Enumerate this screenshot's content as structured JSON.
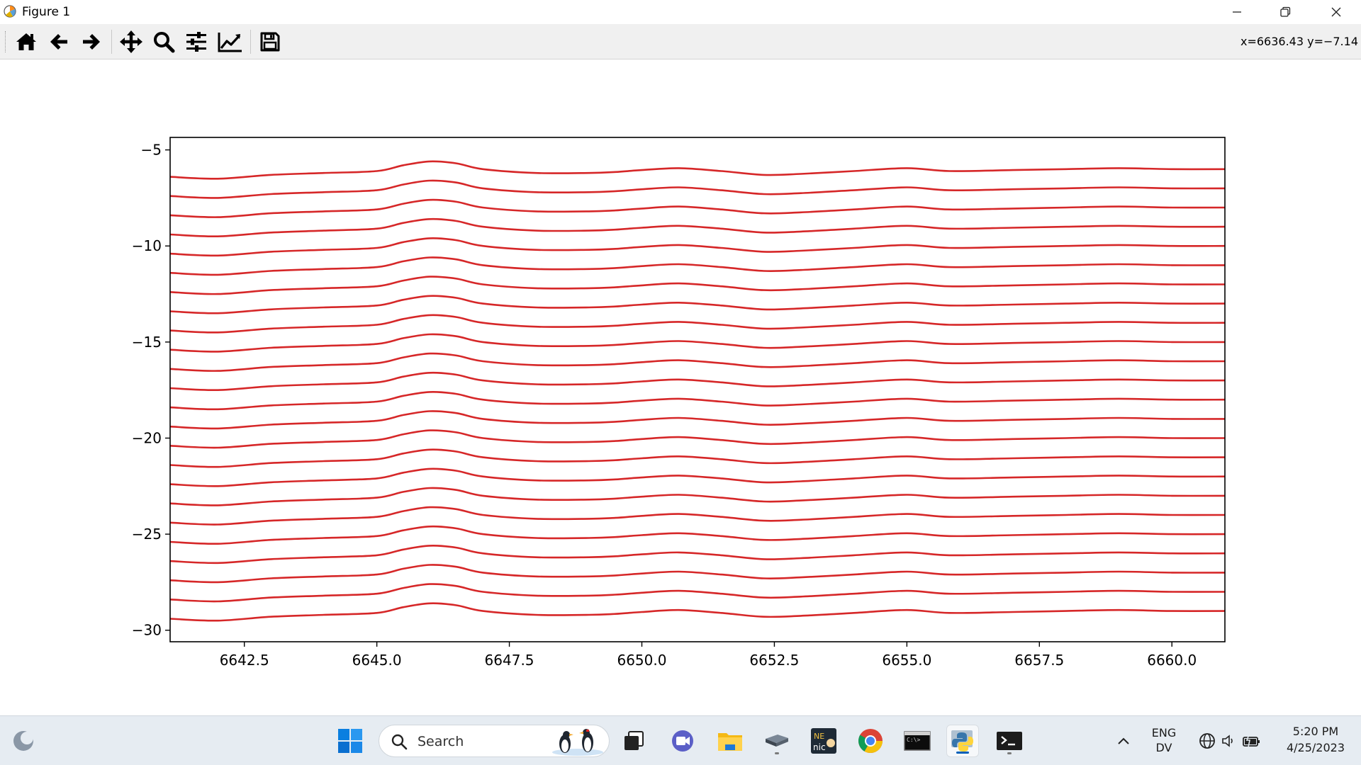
{
  "window": {
    "title": "Figure 1",
    "buttons": [
      "minimize",
      "restore",
      "close"
    ]
  },
  "toolbar": {
    "buttons": [
      {
        "name": "home-button",
        "icon": "home-icon"
      },
      {
        "name": "back-button",
        "icon": "arrow-left-icon"
      },
      {
        "name": "forward-button",
        "icon": "arrow-right-icon"
      },
      {
        "name": "pan-button",
        "icon": "move-icon"
      },
      {
        "name": "zoom-button",
        "icon": "magnifier-icon"
      },
      {
        "name": "subplots-button",
        "icon": "sliders-icon"
      },
      {
        "name": "edit-axis-button",
        "icon": "line-chart-icon"
      },
      {
        "name": "save-button",
        "icon": "floppy-disk-icon"
      }
    ],
    "coords_readout": "x=6636.43 y=−7.14"
  },
  "chart_data": {
    "type": "line",
    "title": "",
    "xlabel": "",
    "ylabel": "",
    "xlim": [
      6641.1,
      6661.0
    ],
    "ylim": [
      -30.6,
      -4.35
    ],
    "xticks": [
      6642.5,
      6645.0,
      6647.5,
      6650.0,
      6652.5,
      6655.0,
      6657.5,
      6660.0
    ],
    "xtick_labels": [
      "6642.5",
      "6645.0",
      "6647.5",
      "6650.0",
      "6652.5",
      "6655.0",
      "6657.5",
      "6660.0"
    ],
    "yticks": [
      -5,
      -10,
      -15,
      -20,
      -25,
      -30
    ],
    "ytick_labels": [
      "−5",
      "−10",
      "−15",
      "−20",
      "−25",
      "−30"
    ],
    "grid": false,
    "legend": "none",
    "line_color": "#d62728",
    "series_count": 24,
    "series_offset_start": -6.4,
    "series_offset_step": -1.0,
    "profile": {
      "x": [
        6641.1,
        6642.0,
        6643.0,
        6644.0,
        6645.0,
        6645.5,
        6646.0,
        6646.5,
        6647.0,
        6648.0,
        6649.0,
        6649.5,
        6650.0,
        6650.7,
        6651.5,
        6652.3,
        6653.0,
        6654.0,
        6655.0,
        6655.8,
        6657.0,
        6658.0,
        6659.0,
        6660.0,
        6661.0
      ],
      "dy": [
        0.0,
        -0.1,
        0.1,
        0.2,
        0.3,
        0.6,
        0.8,
        0.7,
        0.4,
        0.2,
        0.2,
        0.25,
        0.35,
        0.45,
        0.3,
        0.1,
        0.15,
        0.3,
        0.45,
        0.3,
        0.35,
        0.4,
        0.45,
        0.4,
        0.4
      ]
    }
  },
  "taskbar": {
    "search_placeholder": "Search",
    "apps": [
      {
        "name": "task-view",
        "icon": "task-view-icon"
      },
      {
        "name": "teams",
        "icon": "video-chat-icon"
      },
      {
        "name": "file-explorer",
        "icon": "folder-icon"
      },
      {
        "name": "app-generic",
        "icon": "device-icon"
      },
      {
        "name": "app-nic",
        "icon": "nic-icon"
      },
      {
        "name": "chrome",
        "icon": "chrome-icon"
      },
      {
        "name": "terminal",
        "icon": "console-icon"
      },
      {
        "name": "python",
        "icon": "python-icon"
      },
      {
        "name": "powershell",
        "icon": "powershell-icon"
      }
    ],
    "language_line1": "ENG",
    "language_line2": "DV",
    "time": "5:20 PM",
    "date": "4/25/2023"
  }
}
